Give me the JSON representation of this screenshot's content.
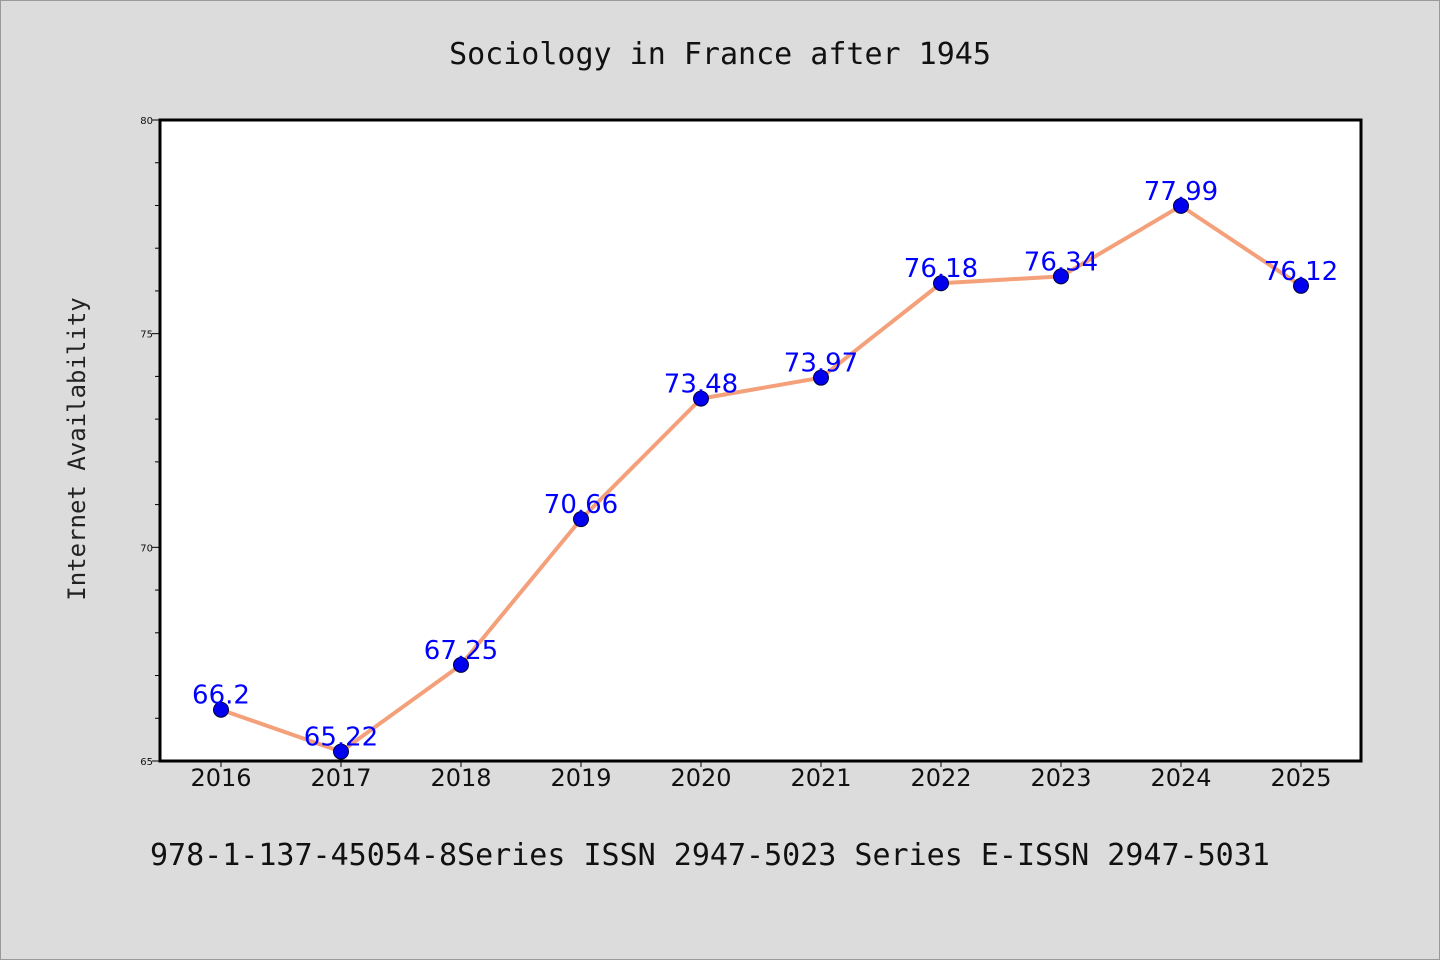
{
  "footer": {
    "text": "978-1-137-45054-8Series ISSN 2947-5023 Series E-ISSN 2947-5031"
  },
  "colors": {
    "background": "#dcdcdc",
    "plot_background": "#ffffff",
    "line": "#f4a07a",
    "marker": "#0000ee",
    "data_label": "#0000ff"
  },
  "chart_data": {
    "type": "line",
    "title": "Sociology in France after 1945",
    "xlabel": "",
    "ylabel": "Internet Availability",
    "categories": [
      "2016",
      "2017",
      "2018",
      "2019",
      "2020",
      "2021",
      "2022",
      "2023",
      "2024",
      "2025"
    ],
    "series": [
      {
        "values": [
          66.2,
          65.22,
          67.25,
          70.66,
          73.48,
          73.97,
          76.18,
          76.34,
          77.99,
          76.12
        ],
        "labels": [
          "66.2",
          "65.22",
          "67.25",
          "70.66",
          "73.48",
          "73.97",
          "76.18",
          "76.34",
          "77.99",
          "76.12"
        ]
      }
    ],
    "ylim": [
      65,
      80
    ],
    "yticks": [
      65,
      70,
      75,
      80
    ],
    "ytick_labels": [
      "65",
      "70",
      "75",
      "80"
    ],
    "y_minor_step": 1,
    "grid": false,
    "legend": "none"
  }
}
